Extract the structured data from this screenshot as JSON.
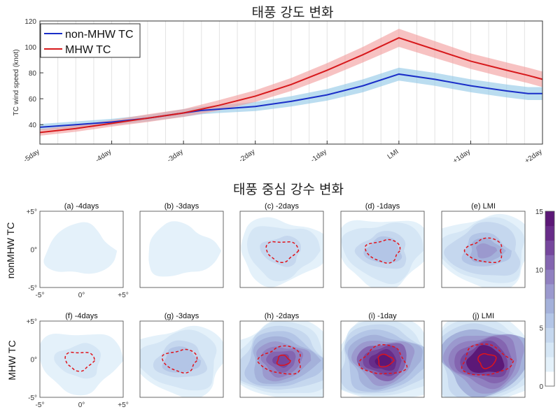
{
  "chart_data": [
    {
      "type": "line",
      "title": "태풍 강도 변화",
      "ylabel": "TC wind speed (knot)",
      "xlabel": "",
      "x_ticks": [
        "-5day",
        "-4day",
        "-3day",
        "-2day",
        "-1day",
        "LMI",
        "+1day",
        "+2day"
      ],
      "xlim": [
        -5,
        2
      ],
      "ylim": [
        25,
        120
      ],
      "y_ticks": [
        40,
        60,
        80,
        100,
        120
      ],
      "grid": "x",
      "legend": "top-left",
      "x": [
        -5,
        -4.5,
        -4,
        -3.5,
        -3,
        -2.75,
        -2.5,
        -2,
        -1.5,
        -1,
        -0.5,
        0,
        0.5,
        1,
        1.5,
        1.8,
        2
      ],
      "series": [
        {
          "name": "non-MHW TC",
          "color": "#1a2ec8",
          "band_color": "#8ec6e6",
          "values": [
            38,
            40,
            42,
            45,
            49,
            51,
            52,
            54,
            58,
            63,
            70,
            79,
            75,
            70,
            66,
            64,
            64
          ],
          "band": [
            2.5,
            2.5,
            2.5,
            2.5,
            3,
            3,
            3,
            3.5,
            4,
            4.5,
            5,
            5,
            5,
            5,
            5,
            5,
            5
          ]
        },
        {
          "name": "MHW TC",
          "color": "#d7191c",
          "band_color": "#f29a9a",
          "values": [
            34,
            37,
            41,
            45,
            49,
            52,
            55,
            62,
            71,
            82,
            94,
            107,
            98,
            89,
            82,
            78,
            75
          ],
          "band": [
            2.5,
            2.5,
            2.5,
            3,
            3,
            3.5,
            4,
            4.5,
            5,
            5.5,
            6,
            7,
            6.5,
            6,
            6,
            6,
            6
          ]
        }
      ]
    },
    {
      "type": "heatmap",
      "title": "태풍 중심 강수 변화",
      "colorbar": {
        "ticks": [
          "0",
          "5",
          "10",
          "15"
        ],
        "range": [
          0,
          15
        ]
      },
      "axis_ticks": {
        "x": [
          "-5°",
          "0°",
          "+5°"
        ],
        "y": [
          "+5°",
          "0°",
          "-5°"
        ]
      },
      "rows": [
        {
          "label": "nonMHW TC",
          "panels": [
            {
              "title": "(a) -4days",
              "intensity": 1.5,
              "dashed": false,
              "solid": false
            },
            {
              "title": "(b) -3days",
              "intensity": 2,
              "dashed": false,
              "solid": false
            },
            {
              "title": "(c) -2days",
              "intensity": 5,
              "dashed": true,
              "solid": false
            },
            {
              "title": "(d) -1days",
              "intensity": 6,
              "dashed": true,
              "solid": false
            },
            {
              "title": "(e) LMI",
              "intensity": 7,
              "dashed": true,
              "solid": false
            }
          ]
        },
        {
          "label": "MHW TC",
          "panels": [
            {
              "title": "(f) -4days",
              "intensity": 4,
              "dashed": true,
              "solid": false
            },
            {
              "title": "(g) -3days",
              "intensity": 6,
              "dashed": true,
              "solid": false
            },
            {
              "title": "(h) -2days",
              "intensity": 9,
              "dashed": true,
              "solid": true
            },
            {
              "title": "(i) -1day",
              "intensity": 10,
              "dashed": true,
              "solid": true
            },
            {
              "title": "(j) LMI",
              "intensity": 11,
              "dashed": true,
              "solid": true
            }
          ]
        }
      ]
    }
  ]
}
